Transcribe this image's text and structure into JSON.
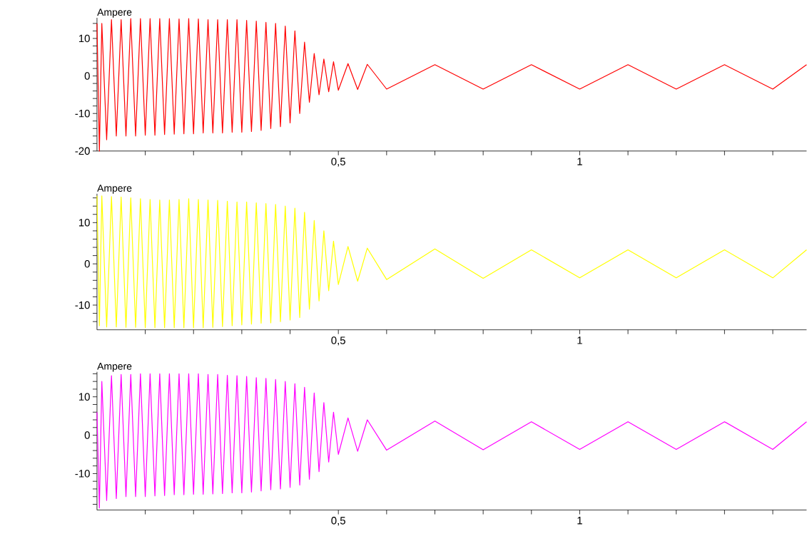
{
  "chart_data": [
    {
      "type": "line",
      "ylabel": "Ampere",
      "x": [
        0,
        0.005,
        0.01,
        0.02,
        0.03,
        0.04,
        0.05,
        0.06,
        0.07,
        0.08,
        0.09,
        0.1,
        0.11,
        0.12,
        0.13,
        0.14,
        0.15,
        0.16,
        0.17,
        0.18,
        0.19,
        0.2,
        0.21,
        0.22,
        0.23,
        0.24,
        0.25,
        0.26,
        0.27,
        0.28,
        0.29,
        0.3,
        0.31,
        0.32,
        0.33,
        0.34,
        0.35,
        0.36,
        0.37,
        0.38,
        0.39,
        0.4,
        0.41,
        0.42,
        0.43,
        0.44,
        0.45,
        0.46,
        0.47,
        0.48,
        0.49,
        0.5,
        0.52,
        0.54,
        0.56,
        0.6,
        0.7,
        0.8,
        0.9,
        1.0,
        1.1,
        1.2,
        1.3,
        1.4,
        1.47
      ],
      "series": [
        {
          "color": "#ff0000",
          "values": [
            14,
            -20,
            14,
            -17,
            15,
            -16,
            15,
            -16,
            15.3,
            -16,
            15.3,
            -15.8,
            15.3,
            -15.8,
            15.3,
            -15.6,
            15.3,
            -15.5,
            15.2,
            -15.4,
            15.3,
            -15.4,
            15.2,
            -15.2,
            15,
            -15.2,
            15,
            -15.2,
            15,
            -15,
            15,
            -15,
            14.8,
            -14.8,
            14.6,
            -14.5,
            14.3,
            -14,
            14,
            -13.5,
            13.3,
            -12.5,
            12,
            -10,
            9,
            -7,
            6,
            -5,
            4.5,
            -4.2,
            3.8,
            -3.8,
            3.3,
            -3.6,
            3.1,
            -3.5,
            3,
            -3.5,
            3,
            -3.5,
            3,
            -3.5,
            3,
            -3.5,
            3
          ]
        }
      ],
      "xlim": [
        0,
        1.47
      ],
      "ylim": [
        -20,
        15.5
      ],
      "xticks": [
        {
          "value": 0.1,
          "label": null
        },
        {
          "value": 0.2,
          "label": null
        },
        {
          "value": 0.3,
          "label": null
        },
        {
          "value": 0.4,
          "label": null
        },
        {
          "value": 0.5,
          "label": "0,5"
        },
        {
          "value": 0.6,
          "label": null
        },
        {
          "value": 0.7,
          "label": null
        },
        {
          "value": 0.8,
          "label": null
        },
        {
          "value": 0.9,
          "label": null
        },
        {
          "value": 1,
          "label": "1"
        },
        {
          "value": 1.1,
          "label": null
        },
        {
          "value": 1.2,
          "label": null
        },
        {
          "value": 1.3,
          "label": null
        },
        {
          "value": 1.4,
          "label": null
        }
      ],
      "yticks": [
        -20,
        {
          "value": -18,
          "label": null
        },
        {
          "value": -16,
          "label": null
        },
        {
          "value": -14,
          "label": null
        },
        {
          "value": -12,
          "label": null
        },
        -10,
        {
          "value": -8,
          "label": null
        },
        {
          "value": -6,
          "label": null
        },
        {
          "value": -4,
          "label": null
        },
        {
          "value": -2,
          "label": null
        },
        0,
        {
          "value": 2,
          "label": null
        },
        {
          "value": 4,
          "label": null
        },
        {
          "value": 6,
          "label": null
        },
        {
          "value": 8,
          "label": null
        },
        10,
        {
          "value": 12,
          "label": null
        },
        {
          "value": 14,
          "label": null
        }
      ]
    },
    {
      "type": "line",
      "ylabel": "Ampere",
      "x": [
        0,
        0.005,
        0.01,
        0.02,
        0.03,
        0.04,
        0.05,
        0.06,
        0.07,
        0.08,
        0.09,
        0.1,
        0.11,
        0.12,
        0.13,
        0.14,
        0.15,
        0.16,
        0.17,
        0.18,
        0.19,
        0.2,
        0.21,
        0.22,
        0.23,
        0.24,
        0.25,
        0.26,
        0.27,
        0.28,
        0.29,
        0.3,
        0.31,
        0.32,
        0.33,
        0.34,
        0.35,
        0.36,
        0.37,
        0.38,
        0.39,
        0.4,
        0.41,
        0.42,
        0.43,
        0.44,
        0.45,
        0.46,
        0.47,
        0.48,
        0.49,
        0.5,
        0.52,
        0.54,
        0.56,
        0.6,
        0.7,
        0.8,
        0.9,
        1.0,
        1.1,
        1.2,
        1.3,
        1.4,
        1.47
      ],
      "series": [
        {
          "color": "#ffff00",
          "values": [
            16.5,
            -15,
            16.5,
            -15.3,
            16.3,
            -15.3,
            16.2,
            -15.4,
            16,
            -15.4,
            15.8,
            -15.5,
            15.6,
            -15.5,
            15.5,
            -15.5,
            15.5,
            -15.5,
            15.6,
            -15.5,
            15.8,
            -15.5,
            15.6,
            -15.5,
            15.5,
            -15.4,
            15.4,
            -15.2,
            15.2,
            -15,
            15,
            -14.8,
            15,
            -14.6,
            14.8,
            -14.4,
            14.6,
            -14.3,
            14.4,
            -14,
            14,
            -13.6,
            13.5,
            -13,
            12.5,
            -11,
            10.5,
            -9,
            8,
            -6.5,
            5.5,
            -5,
            4.2,
            -4.2,
            3.8,
            -3.8,
            3.6,
            -3.5,
            3.4,
            -3.4,
            3.4,
            -3.4,
            3.4,
            -3.4,
            3.4
          ]
        }
      ],
      "xlim": [
        0,
        1.47
      ],
      "ylim": [
        -16,
        17
      ],
      "xticks": [
        {
          "value": 0.1,
          "label": null
        },
        {
          "value": 0.2,
          "label": null
        },
        {
          "value": 0.3,
          "label": null
        },
        {
          "value": 0.4,
          "label": null
        },
        {
          "value": 0.5,
          "label": "0,5"
        },
        {
          "value": 0.6,
          "label": null
        },
        {
          "value": 0.7,
          "label": null
        },
        {
          "value": 0.8,
          "label": null
        },
        {
          "value": 0.9,
          "label": null
        },
        {
          "value": 1,
          "label": "1"
        },
        {
          "value": 1.1,
          "label": null
        },
        {
          "value": 1.2,
          "label": null
        },
        {
          "value": 1.3,
          "label": null
        },
        {
          "value": 1.4,
          "label": null
        }
      ],
      "yticks": [
        {
          "value": -14,
          "label": null
        },
        {
          "value": -12,
          "label": null
        },
        -10,
        {
          "value": -8,
          "label": null
        },
        {
          "value": -6,
          "label": null
        },
        {
          "value": -4,
          "label": null
        },
        {
          "value": -2,
          "label": null
        },
        0,
        {
          "value": 2,
          "label": null
        },
        {
          "value": 4,
          "label": null
        },
        {
          "value": 6,
          "label": null
        },
        {
          "value": 8,
          "label": null
        },
        10,
        {
          "value": 12,
          "label": null
        },
        {
          "value": 14,
          "label": null
        },
        {
          "value": 16,
          "label": null
        }
      ]
    },
    {
      "type": "line",
      "ylabel": "Ampere",
      "x": [
        0,
        0.005,
        0.01,
        0.02,
        0.03,
        0.04,
        0.05,
        0.06,
        0.07,
        0.08,
        0.09,
        0.1,
        0.11,
        0.12,
        0.13,
        0.14,
        0.15,
        0.16,
        0.17,
        0.18,
        0.19,
        0.2,
        0.21,
        0.22,
        0.23,
        0.24,
        0.25,
        0.26,
        0.27,
        0.28,
        0.29,
        0.3,
        0.31,
        0.32,
        0.33,
        0.34,
        0.35,
        0.36,
        0.37,
        0.38,
        0.39,
        0.4,
        0.41,
        0.42,
        0.43,
        0.44,
        0.45,
        0.46,
        0.47,
        0.48,
        0.49,
        0.5,
        0.52,
        0.54,
        0.56,
        0.6,
        0.7,
        0.8,
        0.9,
        1.0,
        1.1,
        1.2,
        1.3,
        1.4,
        1.47
      ],
      "series": [
        {
          "color": "#ff00ff",
          "values": [
            6,
            -19,
            14,
            -17,
            15.5,
            -16.5,
            15.8,
            -16,
            15.8,
            -16,
            16,
            -16,
            16,
            -15.8,
            16,
            -15.7,
            16,
            -15.5,
            16,
            -15.5,
            16,
            -15.4,
            16,
            -15.4,
            15.8,
            -15.3,
            15.8,
            -15.2,
            15.6,
            -15,
            15.5,
            -15,
            15.3,
            -14.8,
            15,
            -14.5,
            14.8,
            -14.2,
            14.5,
            -14,
            14,
            -13.6,
            13.4,
            -13,
            12.5,
            -11.5,
            11,
            -9.5,
            8.5,
            -7,
            6,
            -5,
            4.5,
            -4.2,
            4,
            -3.9,
            3.7,
            -3.8,
            3.5,
            -3.7,
            3.5,
            -3.7,
            3.5,
            -3.7,
            3.5
          ]
        }
      ],
      "xlim": [
        0,
        1.47
      ],
      "ylim": [
        -19.5,
        16.5
      ],
      "xticks": [
        {
          "value": 0.1,
          "label": null
        },
        {
          "value": 0.2,
          "label": null
        },
        {
          "value": 0.3,
          "label": null
        },
        {
          "value": 0.4,
          "label": null
        },
        {
          "value": 0.5,
          "label": "0,5"
        },
        {
          "value": 0.6,
          "label": null
        },
        {
          "value": 0.7,
          "label": null
        },
        {
          "value": 0.8,
          "label": null
        },
        {
          "value": 0.9,
          "label": null
        },
        {
          "value": 1,
          "label": "1"
        },
        {
          "value": 1.1,
          "label": null
        },
        {
          "value": 1.2,
          "label": null
        },
        {
          "value": 1.3,
          "label": null
        },
        {
          "value": 1.4,
          "label": null
        }
      ],
      "yticks": [
        {
          "value": -18,
          "label": null
        },
        {
          "value": -16,
          "label": null
        },
        {
          "value": -14,
          "label": null
        },
        {
          "value": -12,
          "label": null
        },
        -10,
        {
          "value": -8,
          "label": null
        },
        {
          "value": -6,
          "label": null
        },
        {
          "value": -4,
          "label": null
        },
        {
          "value": -2,
          "label": null
        },
        0,
        {
          "value": 2,
          "label": null
        },
        {
          "value": 4,
          "label": null
        },
        {
          "value": 6,
          "label": null
        },
        {
          "value": 8,
          "label": null
        },
        10,
        {
          "value": 12,
          "label": null
        },
        {
          "value": 14,
          "label": null
        },
        {
          "value": 16,
          "label": null
        }
      ]
    }
  ]
}
